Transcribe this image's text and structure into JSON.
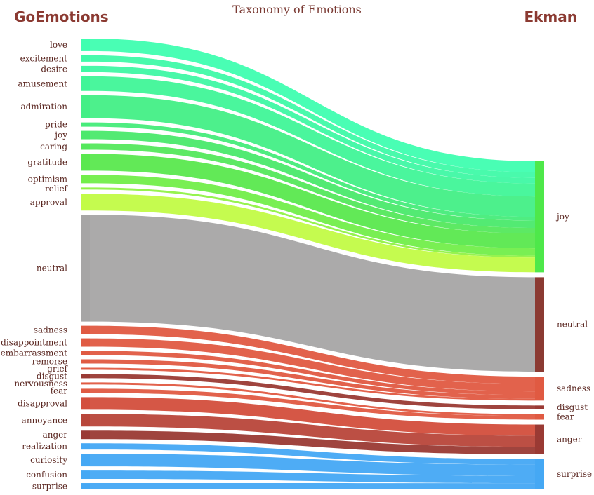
{
  "title": "Taxonomy of Emotions",
  "left_header": "GoEmotions",
  "right_header": "Ekman",
  "chart_data": {
    "type": "sankey",
    "sources": [
      {
        "name": "love",
        "value": 6,
        "target": "joy",
        "color": "#3ffeb0"
      },
      {
        "name": "excitement",
        "value": 3,
        "target": "joy",
        "color": "#3ffaa8"
      },
      {
        "name": "desire",
        "value": 3,
        "target": "joy",
        "color": "#3ff8a4"
      },
      {
        "name": "amusement",
        "value": 7,
        "target": "joy",
        "color": "#40f598"
      },
      {
        "name": "admiration",
        "value": 11,
        "target": "joy",
        "color": "#43ef86"
      },
      {
        "name": "pride",
        "value": 2,
        "target": "joy",
        "color": "#46ec7a"
      },
      {
        "name": "joy",
        "value": 4,
        "target": "joy",
        "color": "#4ae96c"
      },
      {
        "name": "caring",
        "value": 3,
        "target": "joy",
        "color": "#54e85c"
      },
      {
        "name": "gratitude",
        "value": 8,
        "target": "joy",
        "color": "#5ae84e"
      },
      {
        "name": "optimism",
        "value": 4,
        "target": "joy",
        "color": "#72ee4a"
      },
      {
        "name": "relief",
        "value": 1,
        "target": "joy",
        "color": "#90f246"
      },
      {
        "name": "approval",
        "value": 8,
        "target": "joy",
        "color": "#c2fb46"
      },
      {
        "name": "neutral",
        "value": 51,
        "target": "neutral",
        "color": "#a6a5a5"
      },
      {
        "name": "sadness",
        "value": 4,
        "target": "sadness",
        "color": "#e05a42"
      },
      {
        "name": "disappointment",
        "value": 4,
        "target": "sadness",
        "color": "#e05a42"
      },
      {
        "name": "embarrassment",
        "value": 2,
        "target": "sadness",
        "color": "#e05a42"
      },
      {
        "name": "remorse",
        "value": 2,
        "target": "sadness",
        "color": "#e05a42"
      },
      {
        "name": "grief",
        "value": 1,
        "target": "sadness",
        "color": "#e05a42"
      },
      {
        "name": "disgust",
        "value": 2,
        "target": "disgust",
        "color": "#9a3a34"
      },
      {
        "name": "nervousness",
        "value": 1,
        "target": "fear",
        "color": "#e05a42"
      },
      {
        "name": "fear",
        "value": 2,
        "target": "fear",
        "color": "#e05a42"
      },
      {
        "name": "disapproval",
        "value": 6,
        "target": "anger",
        "color": "#d34e3c"
      },
      {
        "name": "annoyance",
        "value": 6,
        "target": "anger",
        "color": "#b8463a"
      },
      {
        "name": "anger",
        "value": 4,
        "target": "anger",
        "color": "#9a3a34"
      },
      {
        "name": "realization",
        "value": 3,
        "target": "surprise",
        "color": "#45a8f4"
      },
      {
        "name": "curiosity",
        "value": 6,
        "target": "surprise",
        "color": "#45a8f4"
      },
      {
        "name": "confusion",
        "value": 4,
        "target": "surprise",
        "color": "#45a8f4"
      },
      {
        "name": "surprise",
        "value": 3,
        "target": "surprise",
        "color": "#45a8f4"
      }
    ],
    "targets": [
      {
        "name": "joy",
        "color": "#4ee84a"
      },
      {
        "name": "neutral",
        "color": "#8b3a32"
      },
      {
        "name": "sadness",
        "color": "#e05a42"
      },
      {
        "name": "disgust",
        "color": "#9a3a34"
      },
      {
        "name": "fear",
        "color": "#e05a42"
      },
      {
        "name": "anger",
        "color": "#9a3a34"
      },
      {
        "name": "surprise",
        "color": "#45a8f4"
      }
    ]
  }
}
